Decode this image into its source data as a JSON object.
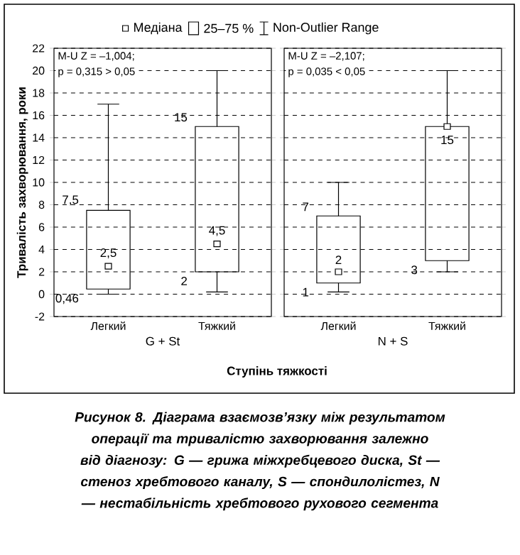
{
  "chart_data": [
    {
      "type": "box",
      "ylabel": "Тривалість захворювання, роки",
      "xlabel": "G + St",
      "categories": [
        "Легкий",
        "Тяжкий"
      ],
      "boxes": [
        {
          "low": 0,
          "q1": 0.46,
          "median": 2.5,
          "q3": 7.5,
          "high": 17
        },
        {
          "low": 0.2,
          "q1": 2,
          "median": 4.5,
          "q3": 15,
          "high": 20
        }
      ],
      "ylim": [
        -2,
        22
      ],
      "yticks": [
        -2,
        0,
        2,
        4,
        6,
        8,
        10,
        12,
        14,
        16,
        18,
        20,
        22
      ],
      "grid": "y",
      "annotations": [
        "M-U Z = –1,004;",
        "p = 0,315 > 0,05",
        "Медіана",
        "25–75 %",
        "Non-Outlier Range",
        "Ступінь тяжкості",
        "Рисунок 8. Діаграма взаємозв’язку між результатом операції та тривалістю захворювання залежно від діагнозу: G — грижа міжхребцевого диска, St — стеноз хребтового каналу, S — спондилолістез, N — нестабільність хребтового рухового сегмента",
        {
          "text": "7,5",
          "x": "Легкий",
          "y": 7.5
        },
        {
          "text": "2,5",
          "x": "Легкий",
          "y": 2.5
        },
        {
          "text": "0,46",
          "x": "Легкий",
          "y": 0.46
        },
        {
          "text": "15",
          "x": "Тяжкий",
          "y": 15
        },
        {
          "text": "4,5",
          "x": "Тяжкий",
          "y": 4.5
        },
        {
          "text": "2",
          "x": "Тяжкий",
          "y": 2
        }
      ]
    },
    {
      "type": "box",
      "xlabel": "N + S",
      "categories": [
        "Легкий",
        "Тяжкий"
      ],
      "boxes": [
        {
          "low": 0.2,
          "q1": 1,
          "median": 2,
          "q3": 7,
          "high": 10
        },
        {
          "low": 2,
          "q1": 3,
          "median": 15,
          "q3": 15,
          "high": 20
        }
      ],
      "ylim": [
        -2,
        22
      ],
      "yticks": [
        -2,
        0,
        2,
        4,
        6,
        8,
        10,
        12,
        14,
        16,
        18,
        20,
        22
      ],
      "grid": "y",
      "tick_labels": "x",
      "annotations": [
        "M-U Z = –2,107;",
        "p = 0,035 < 0,05",
        {
          "text": "7",
          "x": "Легкий",
          "y": 7
        },
        {
          "text": "2",
          "x": "Легкий",
          "y": 2
        },
        {
          "text": "1",
          "x": "Легкий",
          "y": 1
        },
        {
          "text": "15",
          "x": "Тяжкий",
          "y": 15
        },
        {
          "text": "3",
          "x": "Тяжкий",
          "y": 3
        }
      ]
    }
  ]
}
